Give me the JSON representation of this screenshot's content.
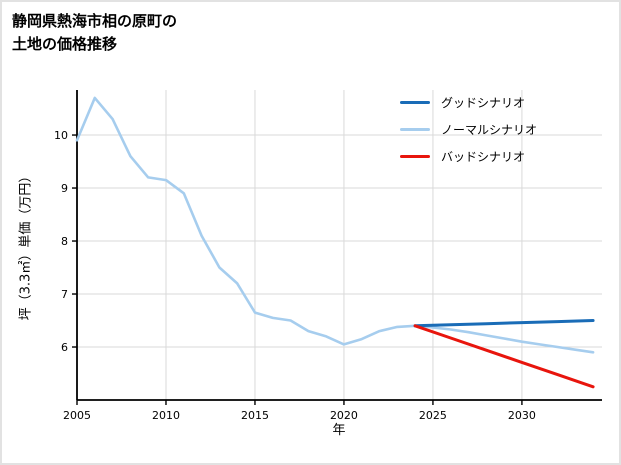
{
  "figure": {
    "background": "#ffffff",
    "border_color": "#e2e2e2"
  },
  "title": {
    "line1": "静岡県熱海市相の原町の",
    "line2": "土地の価格推移"
  },
  "colors": {
    "grid": "#d9d9d9",
    "axis": "#000000",
    "tick_label": "#000000",
    "good": "#1a6cb7",
    "normal": "#a6cdee",
    "bad": "#e8150d"
  },
  "chart_data": {
    "type": "line",
    "title": "静岡県熱海市相の原町の土地の価格推移",
    "xlabel": "年",
    "ylabel": "坪（3.3㎡）単価（万円）",
    "xlim": [
      2005,
      2034.5
    ],
    "ylim": [
      5.0,
      10.85
    ],
    "xticks": [
      2005,
      2010,
      2015,
      2020,
      2025,
      2030
    ],
    "yticks": [
      6,
      7,
      8,
      9,
      10
    ],
    "grid": true,
    "legend_position": "upper right",
    "series": [
      {
        "name": "グッドシナリオ",
        "color": "#1a6cb7",
        "width": 3,
        "zorder": 2,
        "x": [
          2024,
          2026,
          2028,
          2030,
          2032,
          2034
        ],
        "y": [
          6.4,
          6.42,
          6.44,
          6.46,
          6.48,
          6.5
        ]
      },
      {
        "name": "ノーマルシナリオ",
        "color": "#a6cdee",
        "width": 2.6,
        "zorder": 1,
        "x": [
          2005,
          2006,
          2007,
          2008,
          2009,
          2010,
          2011,
          2012,
          2013,
          2014,
          2015,
          2016,
          2017,
          2018,
          2019,
          2020,
          2021,
          2022,
          2023,
          2024,
          2025,
          2026,
          2027,
          2028,
          2029,
          2030,
          2031,
          2032,
          2033,
          2034
        ],
        "y": [
          9.9,
          10.7,
          10.3,
          9.6,
          9.2,
          9.15,
          8.9,
          8.1,
          7.5,
          7.2,
          6.65,
          6.55,
          6.5,
          6.3,
          6.2,
          6.05,
          6.15,
          6.3,
          6.38,
          6.4,
          6.37,
          6.33,
          6.28,
          6.22,
          6.16,
          6.1,
          6.05,
          6.0,
          5.95,
          5.9
        ]
      },
      {
        "name": "バッドシナリオ",
        "color": "#e8150d",
        "width": 3,
        "zorder": 3,
        "x": [
          2024,
          2026,
          2028,
          2030,
          2032,
          2034
        ],
        "y": [
          6.4,
          6.17,
          5.94,
          5.71,
          5.48,
          5.25
        ]
      }
    ]
  }
}
